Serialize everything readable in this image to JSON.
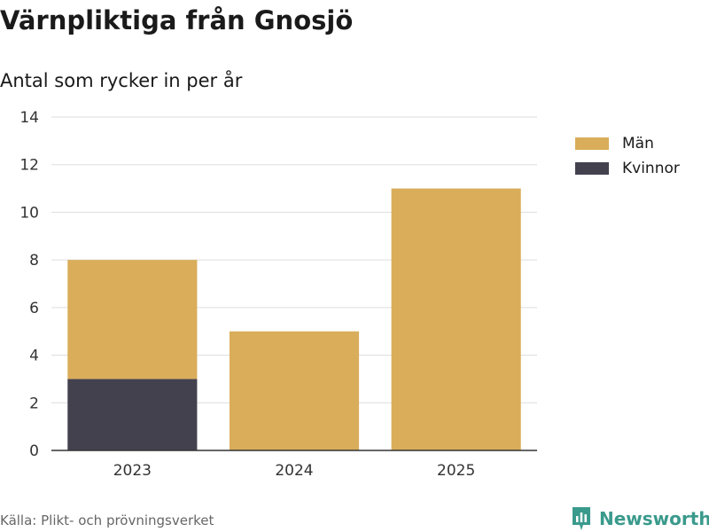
{
  "header": {
    "title": "Värnpliktiga från Gnosjö",
    "subtitle": "Antal som rycker in per år"
  },
  "footer": {
    "source": "Källa: Plikt- och prövningsverket",
    "brand": "Newsworthy"
  },
  "colors": {
    "men": "#d9ad5a",
    "women": "#44414f",
    "grid": "#dddddd",
    "axis": "#333333",
    "brand": "#3a9a8c"
  },
  "chart_data": {
    "type": "bar",
    "stacked": true,
    "title": "Värnpliktiga från Gnosjö",
    "subtitle": "Antal som rycker in per år",
    "xlabel": "",
    "ylabel": "",
    "categories": [
      "2023",
      "2024",
      "2025"
    ],
    "series": [
      {
        "name": "Kvinnor",
        "values": [
          3,
          0,
          0
        ],
        "color": "#44414f"
      },
      {
        "name": "Män",
        "values": [
          5,
          5,
          11
        ],
        "color": "#d9ad5a"
      }
    ],
    "ylim": [
      0,
      14
    ],
    "yticks": [
      0,
      2,
      4,
      6,
      8,
      10,
      12,
      14
    ],
    "grid": true,
    "legend": {
      "position": "right",
      "order": [
        "Män",
        "Kvinnor"
      ]
    }
  }
}
